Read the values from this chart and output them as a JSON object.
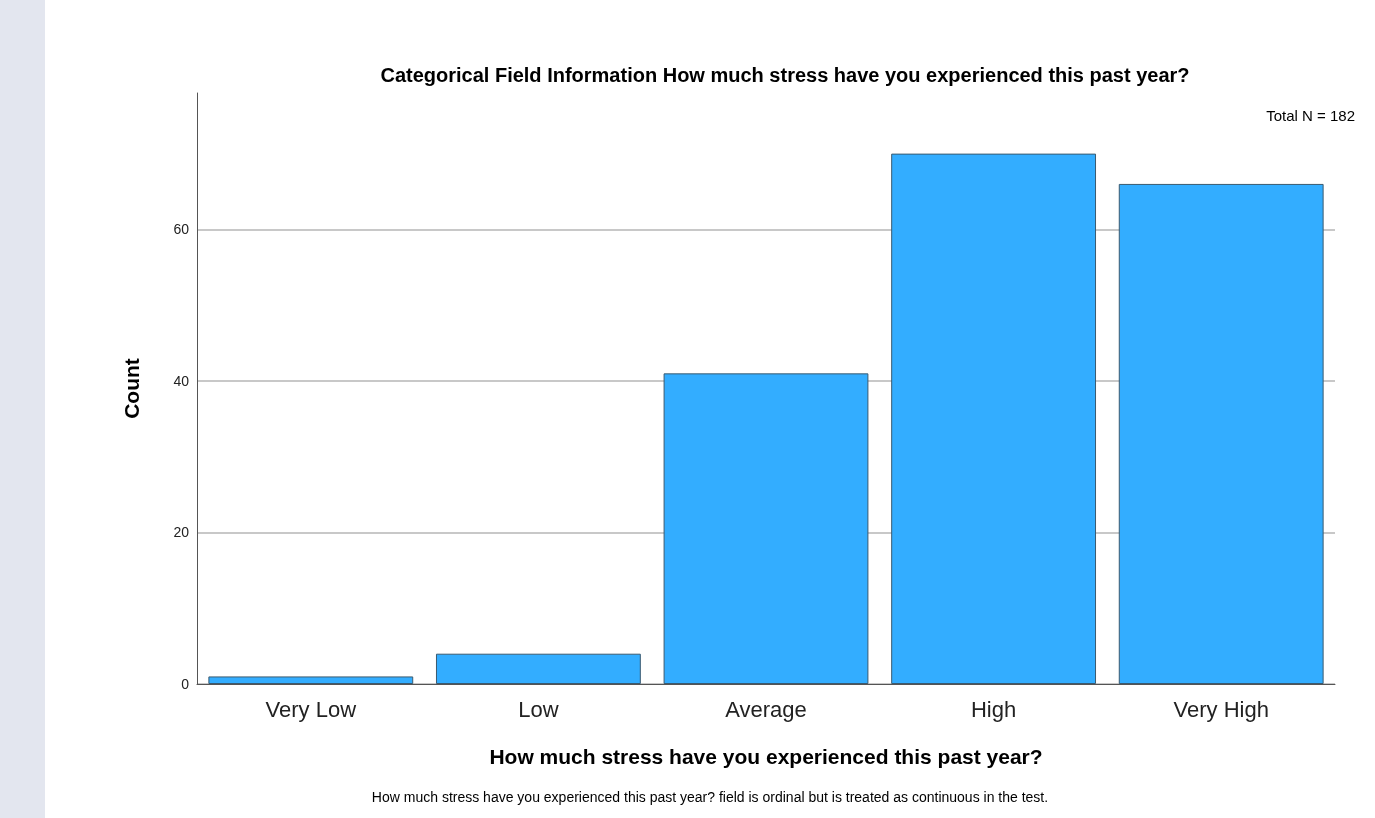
{
  "chart_data": {
    "type": "bar",
    "title": "Categorical Field Information How much stress have you experienced this past year?",
    "xlabel": "How much stress have you experienced this past year?",
    "ylabel": "Count",
    "categories": [
      "Very Low",
      "Low",
      "Average",
      "High",
      "Very High"
    ],
    "values": [
      1,
      4,
      41,
      70,
      66
    ],
    "color": "#33adff",
    "ylim": [
      0,
      78
    ],
    "yticks": [
      0,
      20,
      40,
      60
    ],
    "grid": "y",
    "annotations": [
      "Total N = 182",
      "How much stress have you experienced this past year? field is ordinal but is treated as continuous in the test."
    ]
  }
}
